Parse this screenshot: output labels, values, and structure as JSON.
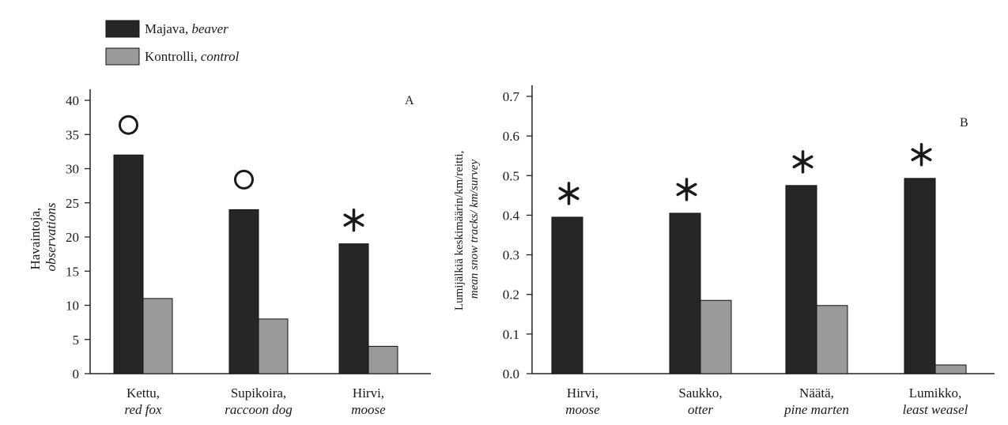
{
  "legend": {
    "items": [
      {
        "main": "Majava, ",
        "italic": "beaver",
        "color": "#262626"
      },
      {
        "main": "Kontrolli, ",
        "italic": "control",
        "color": "#9a9a9a"
      }
    ]
  },
  "chart_data": [
    {
      "type": "bar",
      "panel_label": "A",
      "ylabel_main": "Havaintoja,",
      "ylabel_italic": "observations",
      "ylim": [
        0,
        40
      ],
      "yticks": [
        0,
        5,
        10,
        15,
        20,
        25,
        30,
        35,
        40
      ],
      "categories": [
        {
          "main": "Kettu,",
          "italic": "red fox"
        },
        {
          "main": "Supikoira,",
          "italic": "raccoon dog"
        },
        {
          "main": "Hirvi,",
          "italic": "moose"
        }
      ],
      "series": [
        {
          "name": "Majava, beaver",
          "values": [
            32,
            24,
            19
          ]
        },
        {
          "name": "Kontrolli, control",
          "values": [
            11,
            8,
            4
          ]
        }
      ],
      "markers": [
        "circle",
        "circle",
        "asterisk"
      ]
    },
    {
      "type": "bar",
      "panel_label": "B",
      "ylabel_main": "Lumijälkiä keskimäärin/km/reitti,",
      "ylabel_italic": "mean snow tracks/ km/survey",
      "ylim": [
        0,
        0.7
      ],
      "yticks": [
        0,
        0.1,
        0.2,
        0.3,
        0.4,
        0.5,
        0.6,
        0.7
      ],
      "categories": [
        {
          "main": "Hirvi,",
          "italic": "moose"
        },
        {
          "main": "Saukko,",
          "italic": "otter"
        },
        {
          "main": "Näätä,",
          "italic": "pine marten"
        },
        {
          "main": "Lumikko,",
          "italic": "least weasel"
        }
      ],
      "series": [
        {
          "name": "Majava, beaver",
          "values": [
            0.395,
            0.405,
            0.475,
            0.493
          ]
        },
        {
          "name": "Kontrolli, control",
          "values": [
            0,
            0.185,
            0.172,
            0.022
          ]
        }
      ],
      "markers": [
        "asterisk",
        "asterisk",
        "asterisk",
        "asterisk"
      ]
    }
  ]
}
